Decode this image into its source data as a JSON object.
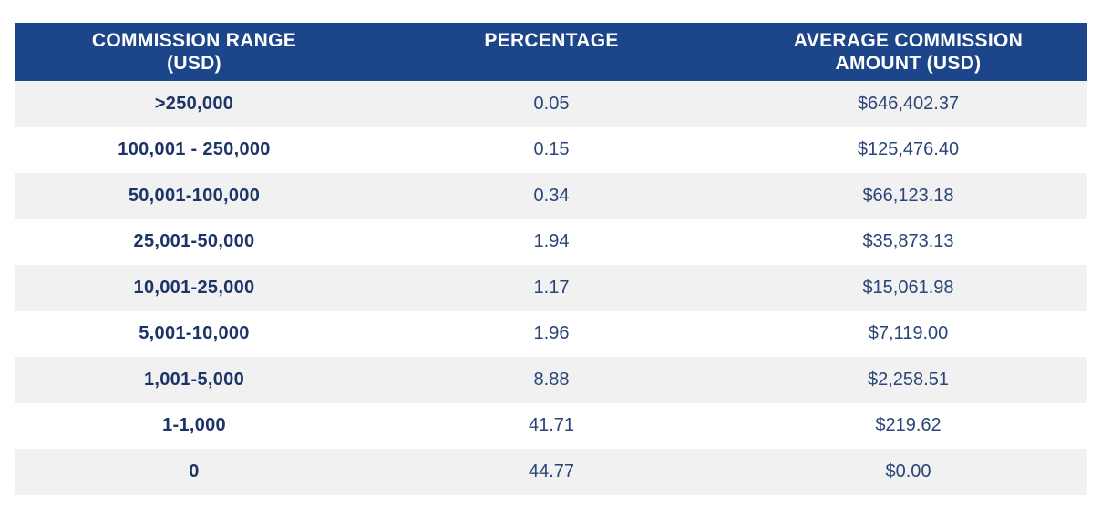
{
  "table": {
    "headers": [
      [
        "COMMISSION RANGE",
        "(USD)"
      ],
      [
        "PERCENTAGE"
      ],
      [
        "AVERAGE COMMISSION",
        "AMOUNT (USD)"
      ]
    ],
    "rows": [
      {
        "range": ">250,000",
        "percentage": "0.05",
        "average": "$646,402.37"
      },
      {
        "range": "100,001 - 250,000",
        "percentage": "0.15",
        "average": "$125,476.40"
      },
      {
        "range": "50,001-100,000",
        "percentage": "0.34",
        "average": "$66,123.18"
      },
      {
        "range": "25,001-50,000",
        "percentage": "1.94",
        "average": "$35,873.13"
      },
      {
        "range": "10,001-25,000",
        "percentage": "1.17",
        "average": "$15,061.98"
      },
      {
        "range": "5,001-10,000",
        "percentage": "1.96",
        "average": "$7,119.00"
      },
      {
        "range": "1,001-5,000",
        "percentage": "8.88",
        "average": "$2,258.51"
      },
      {
        "range": "1-1,000",
        "percentage": "41.71",
        "average": "$219.62"
      },
      {
        "range": "0",
        "percentage": "44.77",
        "average": "$0.00"
      }
    ],
    "colors": {
      "header_bg": "#1c4689",
      "header_text": "#ffffff",
      "row_shade": "#f1f1f1",
      "body_text": "#1c3a6e"
    }
  }
}
